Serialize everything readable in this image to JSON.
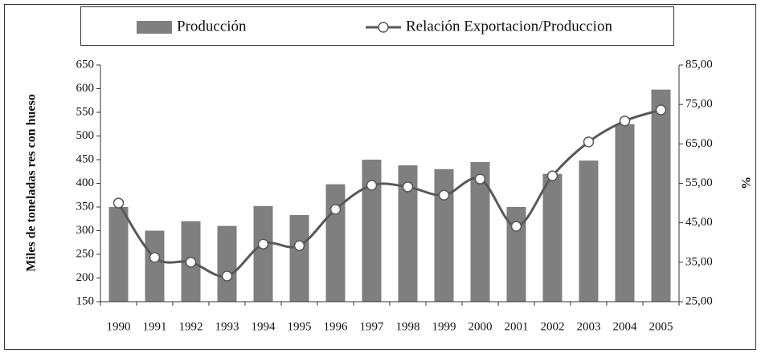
{
  "chart_data": {
    "type": "bar_line",
    "categories": [
      "1990",
      "1991",
      "1992",
      "1993",
      "1994",
      "1995",
      "1996",
      "1997",
      "1998",
      "1999",
      "2000",
      "2001",
      "2002",
      "2003",
      "2004",
      "2005"
    ],
    "series": [
      {
        "name": "Producción",
        "type": "bar",
        "color": "#7f7f7f",
        "values": [
          350,
          300,
          320,
          310,
          352,
          333,
          398,
          450,
          438,
          430,
          445,
          350,
          420,
          448,
          525,
          598
        ]
      },
      {
        "name": "Relación Exportacion/Produccion",
        "type": "line",
        "axis": "y2",
        "color": "#595959",
        "values": [
          50.0,
          36.2,
          35.0,
          31.5,
          39.6,
          39.2,
          48.4,
          54.5,
          54.1,
          52.0,
          56.1,
          44.1,
          56.9,
          65.5,
          70.8,
          73.6
        ]
      }
    ],
    "ylabel": "Miles de toneladas res con hueso",
    "y2label": "%",
    "ylim": [
      150,
      650
    ],
    "yticks": [
      150,
      200,
      250,
      300,
      350,
      400,
      450,
      500,
      550,
      600,
      650
    ],
    "y2lim": [
      25,
      85
    ],
    "y2ticks": [
      {
        "value": 25,
        "label": "25,00"
      },
      {
        "value": 35,
        "label": "35,00"
      },
      {
        "value": 45,
        "label": "45,00"
      },
      {
        "value": 55,
        "label": "55,00"
      },
      {
        "value": 65,
        "label": "65,00"
      },
      {
        "value": 75,
        "label": "75,00"
      },
      {
        "value": 85,
        "label": "85,00"
      }
    ],
    "legend": "top"
  }
}
